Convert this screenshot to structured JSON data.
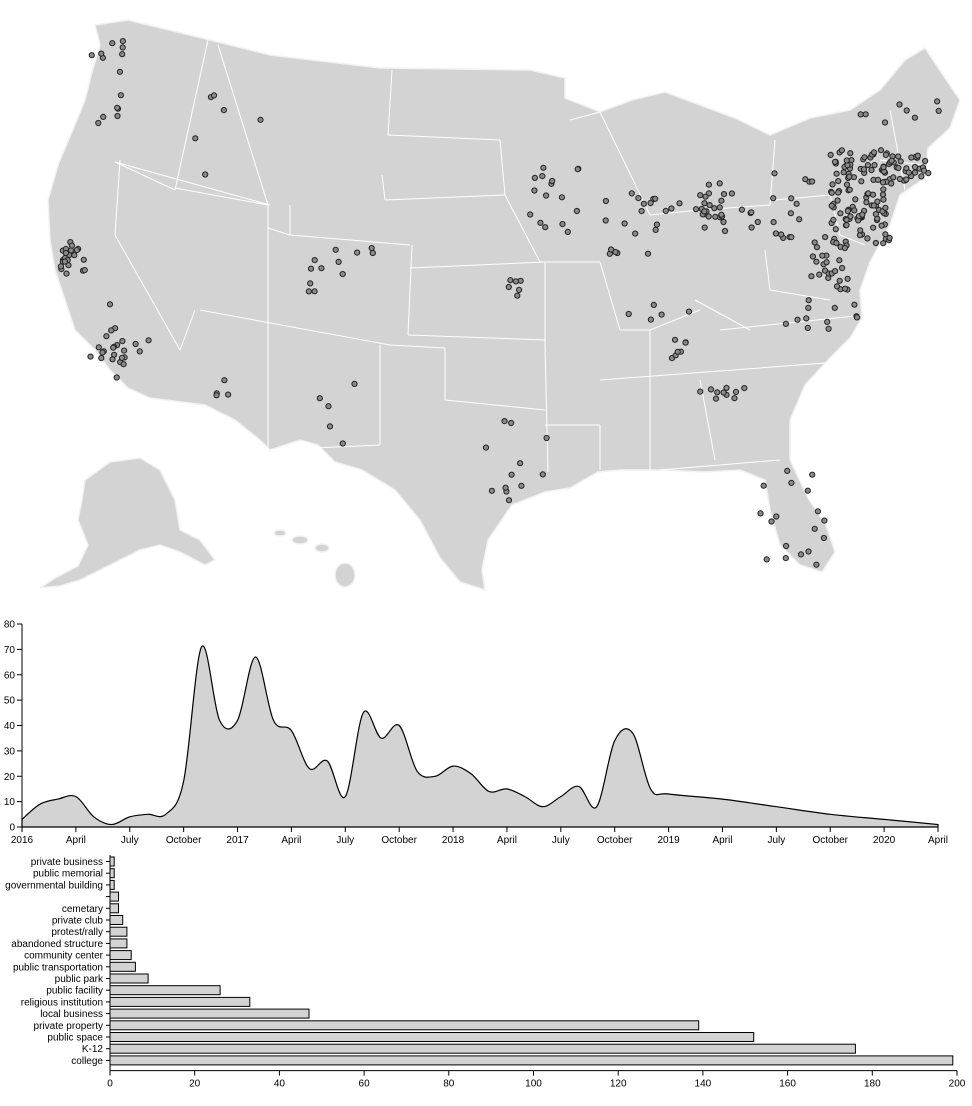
{
  "chart_data": [
    {
      "type": "scatter",
      "title": "",
      "map": "United States",
      "marker_fill": "#8a8a8a",
      "land_color": "#d3d3d3"
    },
    {
      "type": "area",
      "title": "",
      "xlabel": "",
      "ylabel": "",
      "ylim": [
        0,
        80
      ],
      "y_ticks": [
        "0",
        "10",
        "20",
        "30",
        "40",
        "50",
        "60",
        "70",
        "80"
      ],
      "x_ticks": [
        "2016",
        "April",
        "July",
        "October",
        "2017",
        "April",
        "July",
        "October",
        "2018",
        "April",
        "July",
        "October",
        "2019",
        "April",
        "July",
        "October",
        "2020",
        "April"
      ],
      "x": [
        "2016-01",
        "2016-02",
        "2016-03",
        "2016-04",
        "2016-05",
        "2016-06",
        "2016-07",
        "2016-08",
        "2016-09",
        "2016-10",
        "2016-11",
        "2016-12",
        "2017-01",
        "2017-02",
        "2017-03",
        "2017-04",
        "2017-05",
        "2017-06",
        "2017-07",
        "2017-08",
        "2017-09",
        "2017-10",
        "2017-11",
        "2017-12",
        "2018-01",
        "2018-02",
        "2018-03",
        "2018-04",
        "2018-05",
        "2018-06",
        "2018-07",
        "2018-08",
        "2018-09",
        "2018-10",
        "2018-11",
        "2018-12",
        "2019-01",
        "2019-04",
        "2019-07",
        "2019-10",
        "2020-01",
        "2020-04"
      ],
      "values": [
        3,
        9,
        11,
        12,
        4,
        1,
        4,
        5,
        5,
        18,
        71,
        42,
        42,
        67,
        42,
        38,
        23,
        26,
        12,
        45,
        35,
        40,
        22,
        20,
        24,
        21,
        14,
        15,
        12,
        8,
        12,
        16,
        8,
        34,
        37,
        15,
        13,
        11,
        8,
        5,
        3,
        1
      ],
      "fill": "#d3d3d3"
    },
    {
      "type": "bar",
      "orientation": "horizontal",
      "title": "",
      "xlabel": "",
      "ylabel": "",
      "xlim": [
        0,
        200
      ],
      "x_ticks": [
        "0",
        "20",
        "40",
        "60",
        "80",
        "100",
        "120",
        "140",
        "160",
        "180",
        "200"
      ],
      "categories": [
        "private business",
        "public memorial",
        "governmental building",
        "",
        "cemetary",
        "private club",
        "protest/rally",
        "abandoned structure",
        "community center",
        "public transportation",
        "public park",
        "public facility",
        "religious institution",
        "local business",
        "private property",
        "public space",
        "K-12",
        "college"
      ],
      "values": [
        1,
        1,
        1,
        2,
        2,
        3,
        4,
        4,
        5,
        6,
        9,
        26,
        33,
        47,
        139,
        152,
        176,
        199
      ],
      "fill": "#d3d3d3"
    }
  ]
}
